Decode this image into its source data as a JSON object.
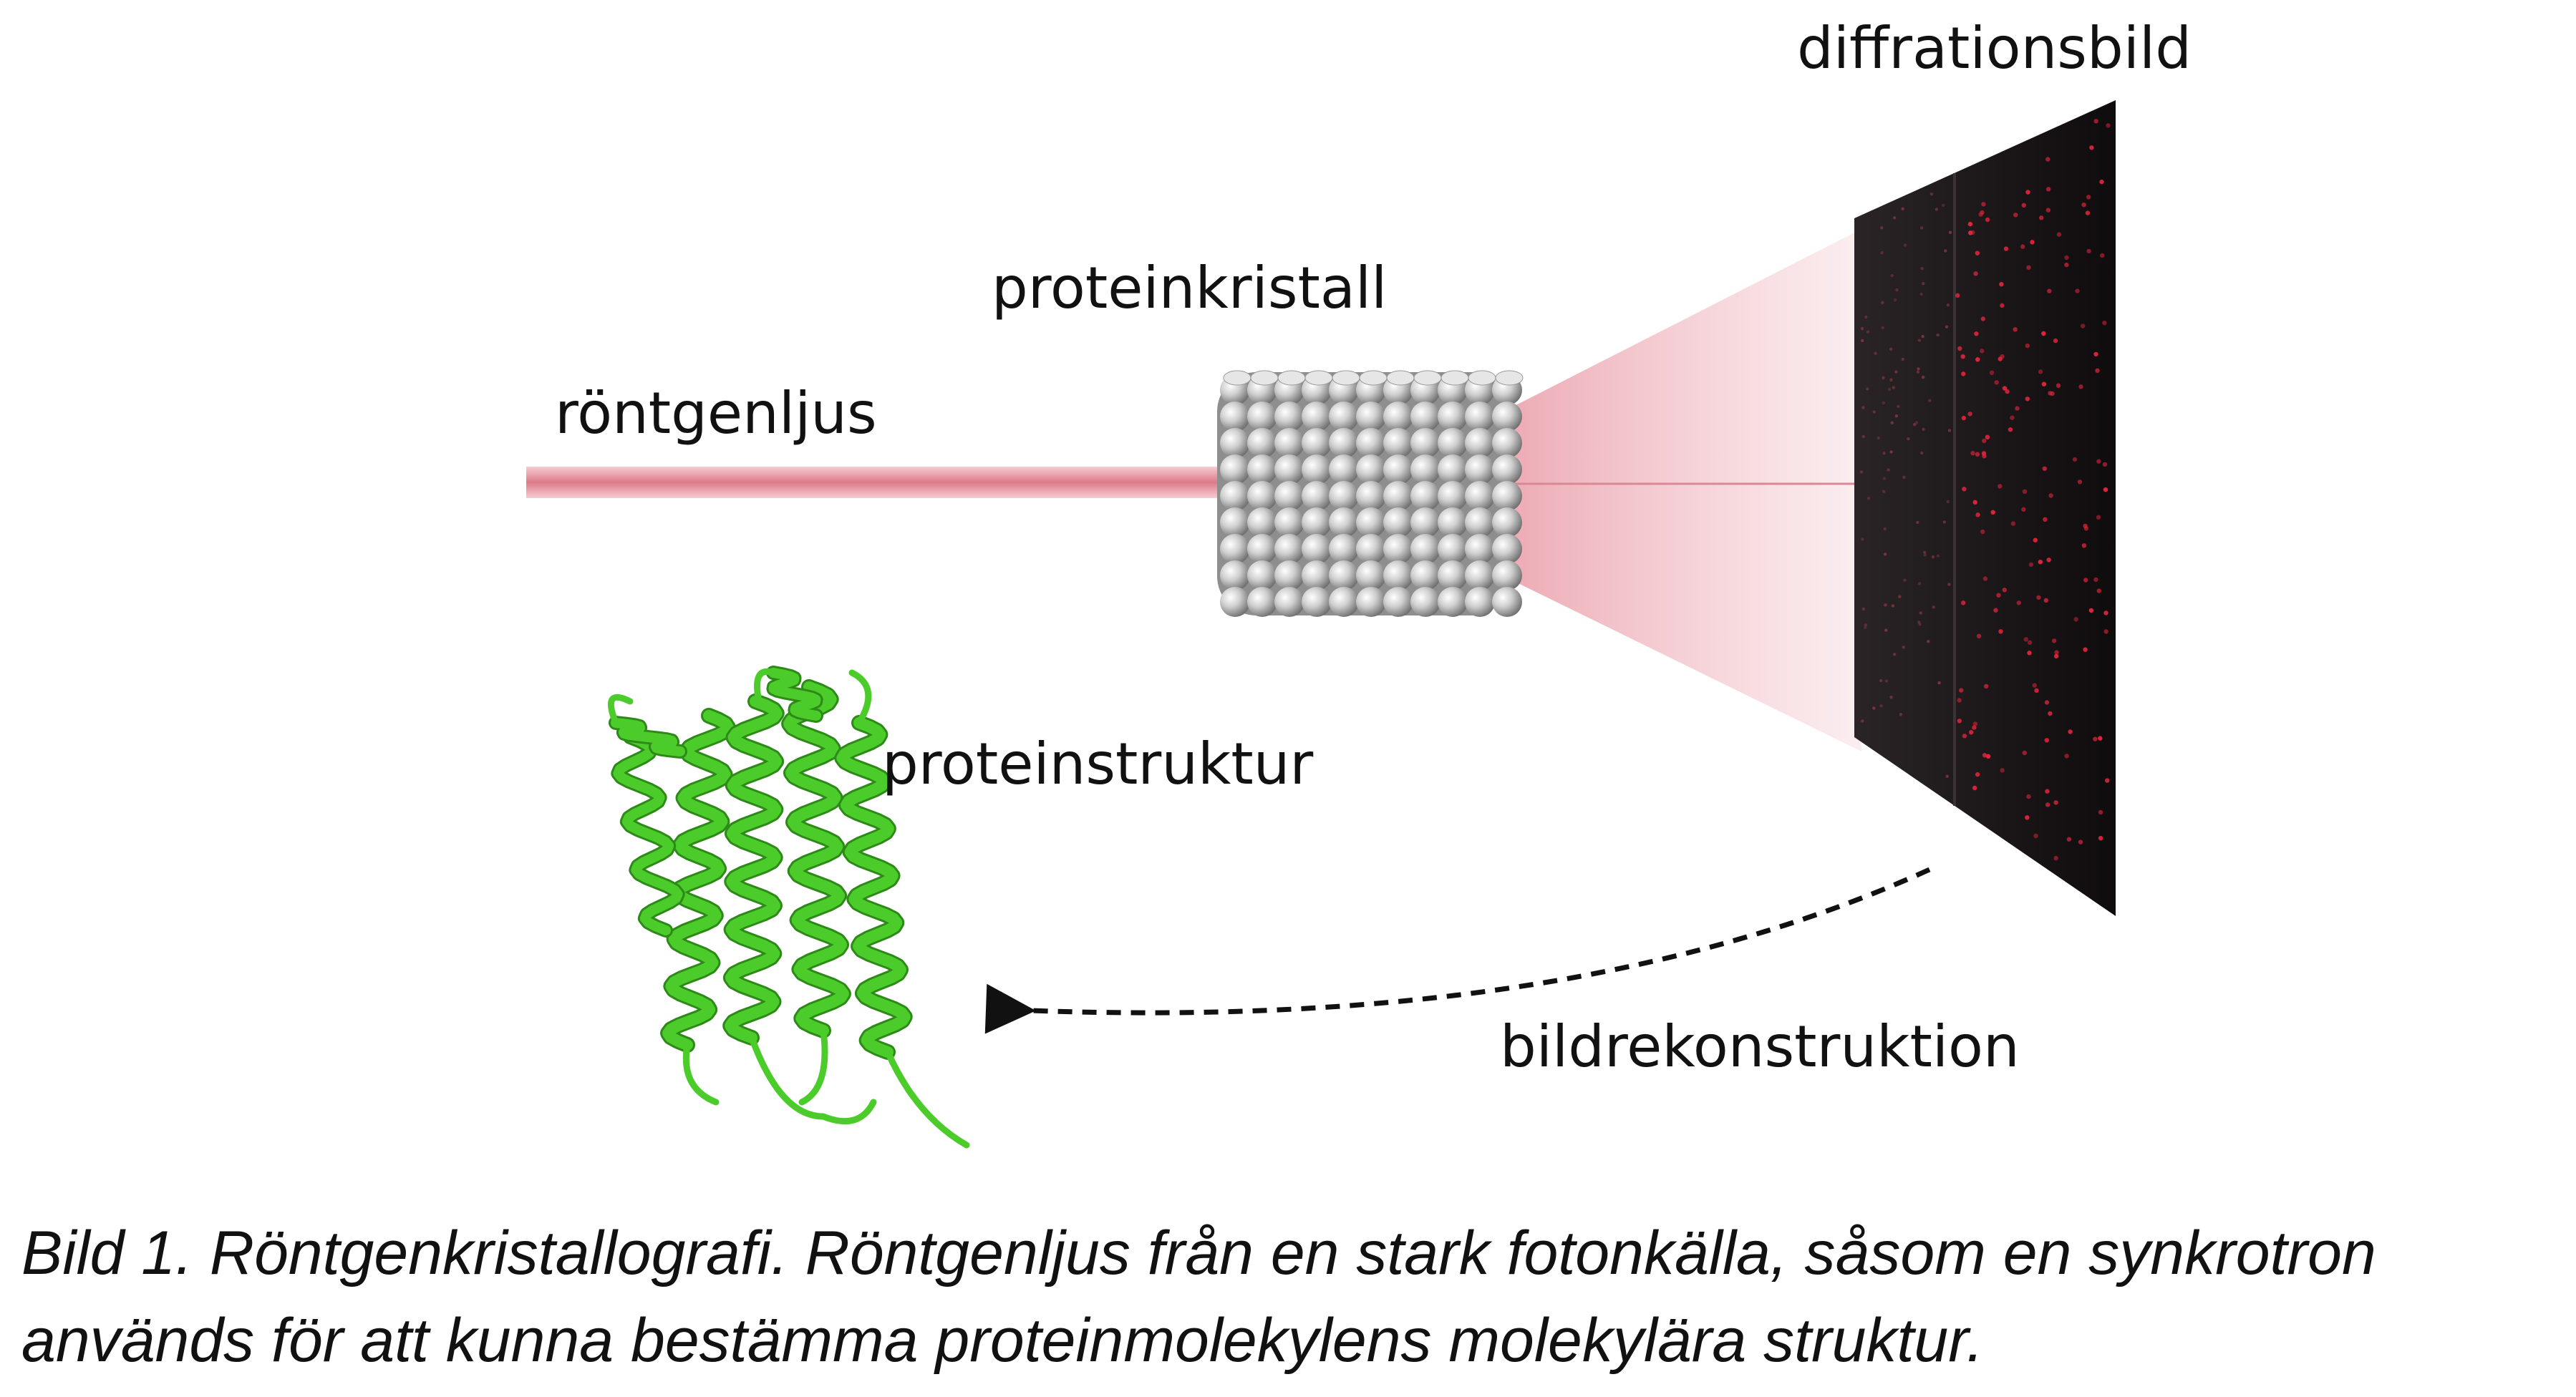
{
  "labels": {
    "xray": "röntgenljus",
    "crystal": "proteinkristall",
    "diffraction": "diffrationsbild",
    "structure": "proteinstruktur",
    "reconstruction": "bildrekonstruktion"
  },
  "caption": {
    "line1": "Bild 1. Röntgenkristallografi. Röntgenljus från en stark fotonkälla, såsom en synkrotron",
    "line2": "används för att kunna bestämma proteinmolekylens molekylära struktur."
  },
  "colors": {
    "beam": "#e38a96",
    "cone": "#f2c4cb",
    "detector": "#161214",
    "spots": "#e3243d",
    "protein": "#4ccc2a",
    "crystal": "#c9c9c9"
  }
}
